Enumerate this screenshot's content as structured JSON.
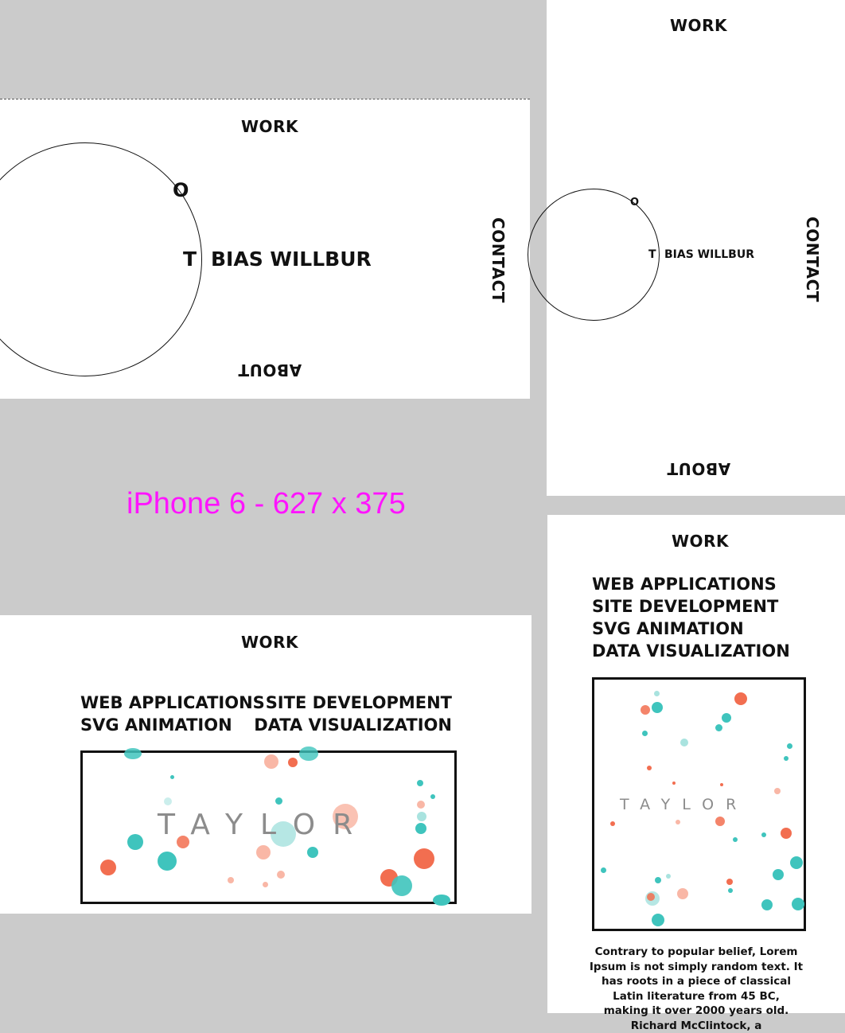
{
  "nav": {
    "work": "WORK",
    "contact": "CONTACT",
    "about": "ABOUT"
  },
  "hero": {
    "letter_t": "T",
    "letter_o": "O",
    "name_rest": "BIAS WILLBUR"
  },
  "caption": "iPhone 6 - 627 x 375",
  "services": [
    "WEB APPLICATIONS",
    "SITE DEVELOPMENT",
    "SVG ANIMATION",
    "DATA VISUALIZATION"
  ],
  "showcase": {
    "word": "TAYLOR"
  },
  "paragraph": "Contrary to popular belief, Lorem Ipsum is not simply random text. It has roots in a piece of classical Latin literature from 45 BC, making it over 2000 years old. Richard McClintock, a",
  "colors": {
    "teal": "#3fc4bd",
    "coral": "#f26e50",
    "peach": "#f9b7a6",
    "light_teal": "#a9e3df",
    "magenta": "#ff14ff"
  }
}
